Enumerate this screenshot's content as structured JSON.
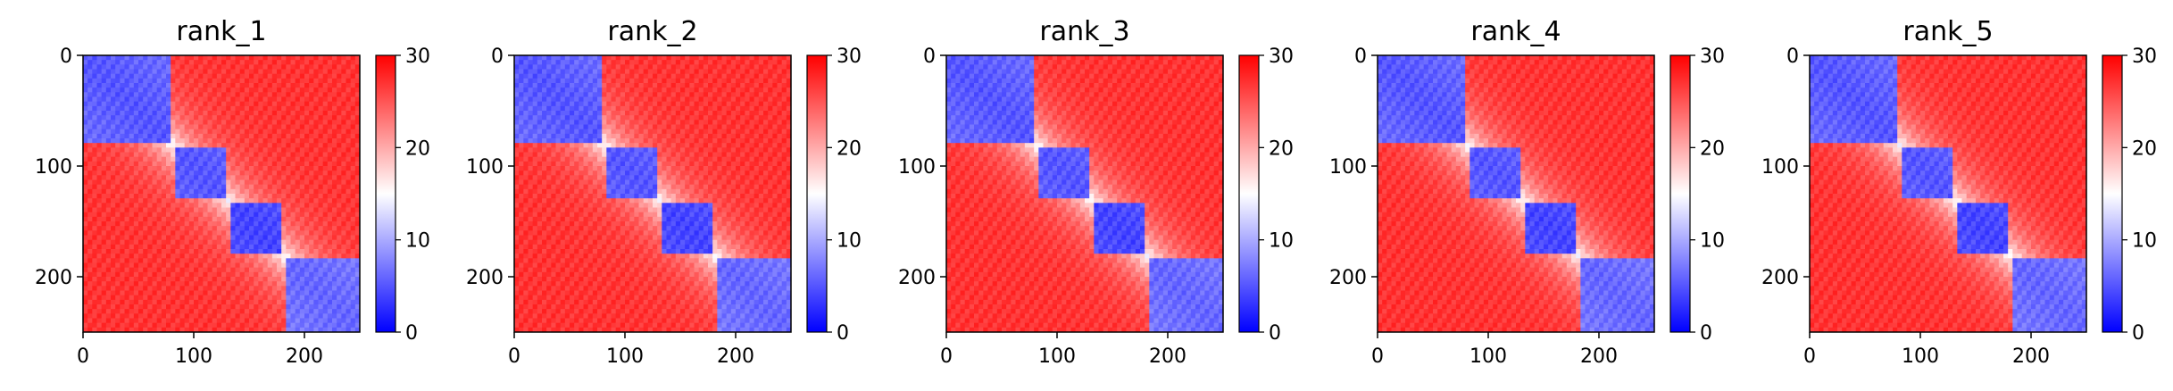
{
  "chart_data": [
    {
      "type": "heatmap",
      "title": "rank_1",
      "matrix_size": 250,
      "xlim": [
        0,
        250
      ],
      "ylim": [
        250,
        0
      ],
      "x_ticks": [
        0,
        100,
        200
      ],
      "y_ticks": [
        0,
        100,
        200
      ],
      "colorbar": {
        "ticks": [
          0,
          10,
          20,
          30
        ],
        "range": [
          0,
          30
        ],
        "colormap": "bwr"
      },
      "blocks": [
        {
          "from": 0,
          "to": 80,
          "level": 5
        },
        {
          "from": 85,
          "to": 130,
          "level": 5
        },
        {
          "from": 135,
          "to": 180,
          "level": 4
        },
        {
          "from": 185,
          "to": 250,
          "level": 6
        }
      ]
    },
    {
      "type": "heatmap",
      "title": "rank_2",
      "matrix_size": 250,
      "xlim": [
        0,
        250
      ],
      "ylim": [
        250,
        0
      ],
      "x_ticks": [
        0,
        100,
        200
      ],
      "y_ticks": [
        0,
        100,
        200
      ],
      "colorbar": {
        "ticks": [
          0,
          10,
          20,
          30
        ],
        "range": [
          0,
          30
        ],
        "colormap": "bwr"
      },
      "blocks": [
        {
          "from": 0,
          "to": 80,
          "level": 5
        },
        {
          "from": 85,
          "to": 130,
          "level": 5
        },
        {
          "from": 135,
          "to": 180,
          "level": 4
        },
        {
          "from": 185,
          "to": 250,
          "level": 6
        }
      ]
    },
    {
      "type": "heatmap",
      "title": "rank_3",
      "matrix_size": 250,
      "xlim": [
        0,
        250
      ],
      "ylim": [
        250,
        0
      ],
      "x_ticks": [
        0,
        100,
        200
      ],
      "y_ticks": [
        0,
        100,
        200
      ],
      "colorbar": {
        "ticks": [
          0,
          10,
          20,
          30
        ],
        "range": [
          0,
          30
        ],
        "colormap": "bwr"
      },
      "blocks": [
        {
          "from": 0,
          "to": 80,
          "level": 5
        },
        {
          "from": 85,
          "to": 130,
          "level": 5
        },
        {
          "from": 135,
          "to": 180,
          "level": 4
        },
        {
          "from": 185,
          "to": 250,
          "level": 6
        }
      ]
    },
    {
      "type": "heatmap",
      "title": "rank_4",
      "matrix_size": 250,
      "xlim": [
        0,
        250
      ],
      "ylim": [
        250,
        0
      ],
      "x_ticks": [
        0,
        100,
        200
      ],
      "y_ticks": [
        0,
        100,
        200
      ],
      "colorbar": {
        "ticks": [
          0,
          10,
          20,
          30
        ],
        "range": [
          0,
          30
        ],
        "colormap": "bwr"
      },
      "blocks": [
        {
          "from": 0,
          "to": 80,
          "level": 5
        },
        {
          "from": 85,
          "to": 130,
          "level": 5
        },
        {
          "from": 135,
          "to": 180,
          "level": 4
        },
        {
          "from": 185,
          "to": 250,
          "level": 6
        }
      ]
    },
    {
      "type": "heatmap",
      "title": "rank_5",
      "matrix_size": 250,
      "xlim": [
        0,
        250
      ],
      "ylim": [
        250,
        0
      ],
      "x_ticks": [
        0,
        100,
        200
      ],
      "y_ticks": [
        0,
        100,
        200
      ],
      "colorbar": {
        "ticks": [
          0,
          10,
          20,
          30
        ],
        "range": [
          0,
          30
        ],
        "colormap": "bwr"
      },
      "blocks": [
        {
          "from": 0,
          "to": 80,
          "level": 5
        },
        {
          "from": 85,
          "to": 130,
          "level": 5
        },
        {
          "from": 135,
          "to": 180,
          "level": 4
        },
        {
          "from": 185,
          "to": 250,
          "level": 6
        }
      ]
    }
  ],
  "colors": {
    "low": "#0000ff",
    "mid": "#ffffff",
    "high": "#ff0000",
    "axis": "#000000"
  }
}
